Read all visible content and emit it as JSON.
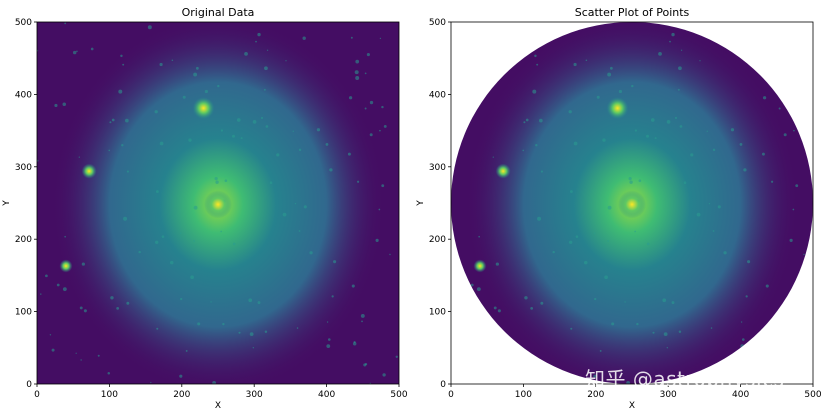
{
  "chart_data": [
    {
      "type": "heatmap",
      "title": "Original Data",
      "xlabel": "X",
      "ylabel": "Y",
      "xlim": [
        0,
        500
      ],
      "ylim": [
        0,
        500
      ],
      "xticks": [
        0,
        100,
        200,
        300,
        400,
        500
      ],
      "yticks": [
        0,
        100,
        200,
        300,
        400,
        500
      ],
      "mask": "none",
      "colormap": "viridis",
      "bright_sources": [
        {
          "x": 250,
          "y": 248,
          "intensity": 1.0
        },
        {
          "x": 230,
          "y": 381,
          "intensity": 0.7
        },
        {
          "x": 72,
          "y": 294,
          "intensity": 0.35
        },
        {
          "x": 40,
          "y": 163,
          "intensity": 0.25
        }
      ]
    },
    {
      "type": "heatmap",
      "title": "Scatter Plot of Points",
      "xlabel": "X",
      "ylabel": "Y",
      "xlim": [
        0,
        500
      ],
      "ylim": [
        0,
        500
      ],
      "xticks": [
        0,
        100,
        200,
        300,
        400,
        500
      ],
      "yticks": [
        0,
        100,
        200,
        300,
        400,
        500
      ],
      "mask": "circle",
      "mask_center": [
        250,
        250
      ],
      "mask_radius": 250,
      "colormap": "viridis",
      "bright_sources": [
        {
          "x": 250,
          "y": 248,
          "intensity": 1.0
        },
        {
          "x": 230,
          "y": 381,
          "intensity": 0.7
        },
        {
          "x": 72,
          "y": 294,
          "intensity": 0.35
        },
        {
          "x": 40,
          "y": 163,
          "intensity": 0.25
        }
      ]
    }
  ],
  "colors": {
    "background": "#440d63",
    "halo_outer": "#3b528b",
    "halo_mid": "#2a8c8a",
    "halo_inner": "#3fbc73",
    "core": "#fde725"
  },
  "watermark": "知乎 @astrophysics"
}
